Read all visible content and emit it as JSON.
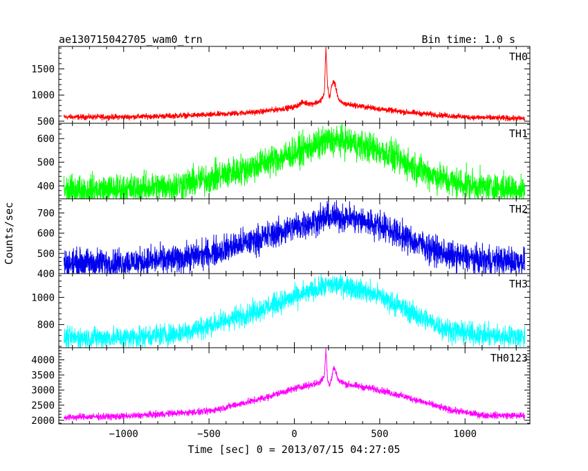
{
  "header": {
    "left": "ae130715042705_wam0_trn",
    "right": "Bin time: 1.0 s"
  },
  "axes": {
    "ylabel": "Counts/sec",
    "xlabel": "Time [sec] 0 = 2013/07/15 04:27:05"
  },
  "chart_data": [
    {
      "type": "line",
      "name": "TH0",
      "color": "#ff0000",
      "xlim": [
        -1380,
        1380
      ],
      "ylim": [
        460,
        1930
      ],
      "yticks": [
        500,
        1000,
        1500
      ],
      "xticks": [
        -1000,
        -500,
        0,
        500,
        1000
      ],
      "noise": 26,
      "x": [
        -1350,
        -1000,
        -500,
        -200,
        0,
        50,
        100,
        150,
        175,
        185,
        195,
        205,
        215,
        230,
        240,
        250,
        260,
        270,
        300,
        400,
        600,
        800,
        1000,
        1200,
        1350
      ],
      "y": [
        580,
        580,
        620,
        680,
        770,
        860,
        830,
        880,
        1000,
        1900,
        1180,
        930,
        1120,
        1280,
        1180,
        1040,
        920,
        860,
        830,
        780,
        690,
        630,
        580,
        560,
        550
      ]
    },
    {
      "type": "line",
      "name": "TH1",
      "color": "#00ff00",
      "xlim": [
        -1380,
        1380
      ],
      "ylim": [
        345,
        665
      ],
      "yticks": [
        400,
        500,
        600
      ],
      "xticks": [
        -1000,
        -500,
        0,
        500,
        1000
      ],
      "noise": 32,
      "x": [
        -1350,
        -1000,
        -700,
        -500,
        -250,
        0,
        200,
        300,
        500,
        700,
        900,
        1100,
        1350
      ],
      "y": [
        380,
        385,
        400,
        430,
        480,
        540,
        590,
        590,
        550,
        480,
        420,
        395,
        385
      ]
    },
    {
      "type": "line",
      "name": "TH2",
      "color": "#0000ee",
      "xlim": [
        -1380,
        1380
      ],
      "ylim": [
        400,
        770
      ],
      "yticks": [
        400,
        500,
        600,
        700
      ],
      "xticks": [
        -1000,
        -500,
        0,
        500,
        1000
      ],
      "noise": 35,
      "x": [
        -1350,
        -1000,
        -700,
        -500,
        -250,
        0,
        200,
        300,
        500,
        700,
        900,
        1100,
        1350
      ],
      "y": [
        450,
        455,
        470,
        500,
        560,
        630,
        680,
        680,
        640,
        560,
        490,
        465,
        460
      ]
    },
    {
      "type": "line",
      "name": "TH3",
      "color": "#00ffff",
      "xlim": [
        -1380,
        1380
      ],
      "ylim": [
        630,
        1175
      ],
      "yticks": [
        800,
        1000
      ],
      "xticks": [
        -1000,
        -500,
        0,
        500,
        1000
      ],
      "noise": 40,
      "x": [
        -1350,
        -1000,
        -700,
        -500,
        -250,
        0,
        200,
        300,
        500,
        700,
        900,
        1100,
        1350
      ],
      "y": [
        700,
        705,
        730,
        790,
        890,
        1000,
        1090,
        1090,
        1010,
        880,
        760,
        720,
        710
      ]
    },
    {
      "type": "line",
      "name": "TH0123",
      "color": "#ff00ff",
      "xlim": [
        -1380,
        1380
      ],
      "ylim": [
        1880,
        4400
      ],
      "yticks": [
        2000,
        2500,
        3000,
        3500,
        4000
      ],
      "xticks": [
        -1000,
        -500,
        0,
        500,
        1000
      ],
      "noise": 55,
      "x": [
        -1350,
        -1000,
        -500,
        -200,
        0,
        150,
        175,
        185,
        195,
        205,
        215,
        230,
        240,
        260,
        300,
        500,
        700,
        900,
        1100,
        1350
      ],
      "y": [
        2100,
        2130,
        2300,
        2700,
        3050,
        3250,
        3450,
        4350,
        3350,
        3150,
        3300,
        3750,
        3650,
        3300,
        3200,
        3000,
        2700,
        2350,
        2170,
        2150
      ]
    }
  ]
}
